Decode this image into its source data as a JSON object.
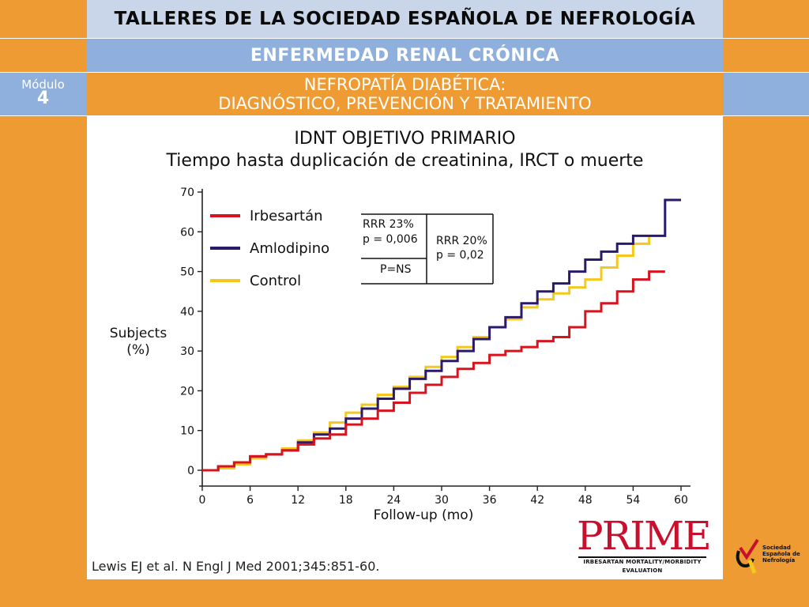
{
  "header": {
    "title": "TALLERES DE LA SOCIEDAD ESPAÑOLA DE NEFROLOGÍA",
    "subtitle": "ENFERMEDAD RENAL CRÓNICA",
    "module_label": "Módulo",
    "module_number": "4",
    "section_line1": "NEFROPATÍA DIABÉTICA:",
    "section_line2": "DIAGNÓSTICO, PREVENCIÓN  Y TRATAMIENTO"
  },
  "citation": "Lewis EJ et al. N Engl J Med 2001;345:851-60.",
  "logos": {
    "prime_word": "PRIME",
    "prime_tagline": "IRBESARTAN MORTALITY/MORBIDITY EVALUATION",
    "sen_line1": "Sociedad",
    "sen_line2": "Española de",
    "sen_line3": "Nefrología"
  },
  "colors": {
    "background_orange": "#EE9B33",
    "header_light_blue": "#C9D6EA",
    "header_blue": "#8FB0DC",
    "irbesartan": "#D7141E",
    "amlodipino": "#2B1A6B",
    "control": "#F5C81C"
  },
  "chart_data": {
    "type": "line",
    "title": "IDNT OBJETIVO PRIMARIO",
    "subtitle": "Tiempo hasta duplicación de creatinina, IRCT o muerte",
    "xlabel": "Follow-up (mo)",
    "ylabel_line1": "Subjects",
    "ylabel_line2": "(%)",
    "xlim": [
      0,
      60
    ],
    "ylim": [
      0,
      70
    ],
    "xticks": [
      0,
      6,
      12,
      18,
      24,
      30,
      36,
      42,
      48,
      54,
      60
    ],
    "yticks": [
      0,
      10,
      20,
      30,
      40,
      50,
      60,
      70
    ],
    "grid": false,
    "legend_position": "top-left",
    "series": [
      {
        "name": "Irbesartán",
        "color": "#D7141E",
        "x": [
          0,
          2,
          4,
          6,
          8,
          10,
          12,
          14,
          16,
          18,
          20,
          22,
          24,
          26,
          28,
          30,
          32,
          34,
          36,
          38,
          40,
          42,
          44,
          46,
          48,
          50,
          52,
          54,
          56,
          58
        ],
        "y": [
          0,
          1,
          2,
          3.5,
          4,
          5,
          6.5,
          8,
          9,
          11.5,
          13,
          15,
          17,
          19.5,
          21.5,
          23.5,
          25.5,
          27,
          29,
          30,
          31,
          32.5,
          33.5,
          36,
          40,
          42,
          45,
          48,
          50,
          50
        ]
      },
      {
        "name": "Amlodipino",
        "color": "#2B1A6B",
        "x": [
          0,
          2,
          4,
          6,
          8,
          10,
          12,
          14,
          16,
          18,
          20,
          22,
          24,
          26,
          28,
          30,
          32,
          34,
          36,
          38,
          40,
          42,
          44,
          46,
          48,
          50,
          52,
          54,
          56,
          57,
          58,
          60
        ],
        "y": [
          0,
          1,
          2,
          3.5,
          4,
          5,
          7,
          9,
          10.5,
          13,
          15.5,
          18,
          20.5,
          23,
          25,
          27.5,
          30,
          33,
          36,
          38.5,
          42,
          45,
          47,
          50,
          53,
          55,
          57,
          59,
          59,
          59,
          68,
          68
        ]
      },
      {
        "name": "Control",
        "color": "#F5C81C",
        "x": [
          0,
          2,
          4,
          6,
          8,
          10,
          12,
          14,
          16,
          18,
          20,
          22,
          24,
          26,
          28,
          30,
          32,
          34,
          36,
          38,
          40,
          42,
          44,
          46,
          48,
          50,
          52,
          54,
          56
        ],
        "y": [
          0,
          0.5,
          1.5,
          3,
          4,
          5.5,
          7.5,
          9.5,
          12,
          14.5,
          16.5,
          19,
          21,
          23.5,
          26,
          28.5,
          31,
          33.5,
          36,
          38,
          41,
          43,
          44.5,
          46,
          48,
          51,
          54,
          57,
          59
        ]
      }
    ],
    "annotation_table": {
      "rows": [
        [
          "RRR 23%",
          "RRR 20%"
        ],
        [
          "p = 0,006",
          "p = 0,02"
        ],
        [
          "P=NS",
          ""
        ]
      ]
    }
  }
}
